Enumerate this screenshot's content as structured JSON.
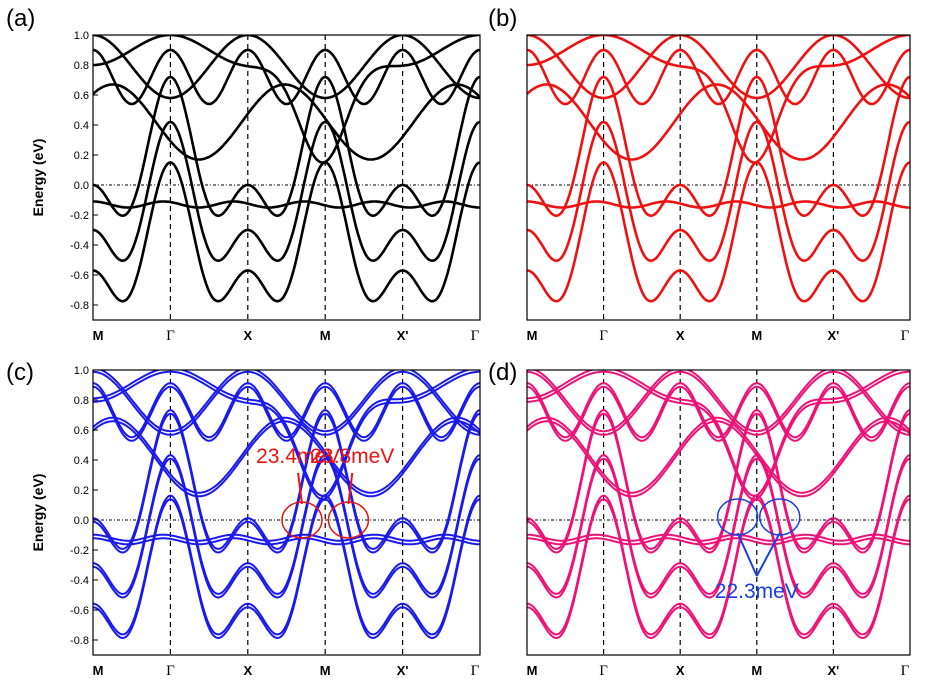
{
  "chart_data": [
    {
      "type": "line",
      "panel_label": "(a)",
      "ylabel": "Energy (eV)",
      "ylim": [
        -0.9,
        1.0
      ],
      "yticks": [
        "1.0",
        "0.8",
        "0.6",
        "0.4",
        "0.2",
        "0.0",
        "-0.2",
        "-0.4",
        "-0.6",
        "-0.8"
      ],
      "xticks": [
        "M",
        "Γ",
        "X",
        "M",
        "X'",
        "Γ"
      ],
      "color": "#000000",
      "doubled": false,
      "annotations": []
    },
    {
      "type": "line",
      "panel_label": "(b)",
      "ylabel": "",
      "ylim": [
        -0.9,
        1.0
      ],
      "yticks": [],
      "xticks": [
        "M",
        "Γ",
        "X",
        "M",
        "X'",
        "Γ"
      ],
      "color": "#ee1111",
      "doubled": false,
      "annotations": []
    },
    {
      "type": "line",
      "panel_label": "(c)",
      "ylabel": "Energy (eV)",
      "ylim": [
        -0.9,
        1.0
      ],
      "yticks": [
        "1.0",
        "0.8",
        "0.6",
        "0.4",
        "0.2",
        "0.0",
        "-0.2",
        "-0.4",
        "-0.6",
        "-0.8"
      ],
      "xticks": [
        "M",
        "Γ",
        "X",
        "M",
        "X'",
        "Γ"
      ],
      "color": "#1a1aee",
      "doubled": true,
      "annotations": [
        {
          "text": "23.4meV",
          "color": "#ee1111",
          "x": 2.65,
          "y": 0.38,
          "targets": [
            [
              2.7,
              0.0
            ]
          ]
        },
        {
          "text": "23.8meV",
          "color": "#ee1111",
          "x": 3.35,
          "y": 0.38,
          "targets": [
            [
              3.3,
              0.0
            ]
          ]
        }
      ]
    },
    {
      "type": "line",
      "panel_label": "(d)",
      "ylabel": "",
      "ylim": [
        -0.9,
        1.0
      ],
      "yticks": [],
      "xticks": [
        "M",
        "Γ",
        "X",
        "M",
        "X'",
        "Γ"
      ],
      "color": "#ee1177",
      "doubled": true,
      "annotations": [
        {
          "text": "22.3meV",
          "color": "#1a3ee0",
          "x": 3.0,
          "y": -0.52,
          "targets": [
            [
              2.75,
              0.02
            ],
            [
              3.3,
              0.02
            ]
          ]
        }
      ]
    }
  ]
}
